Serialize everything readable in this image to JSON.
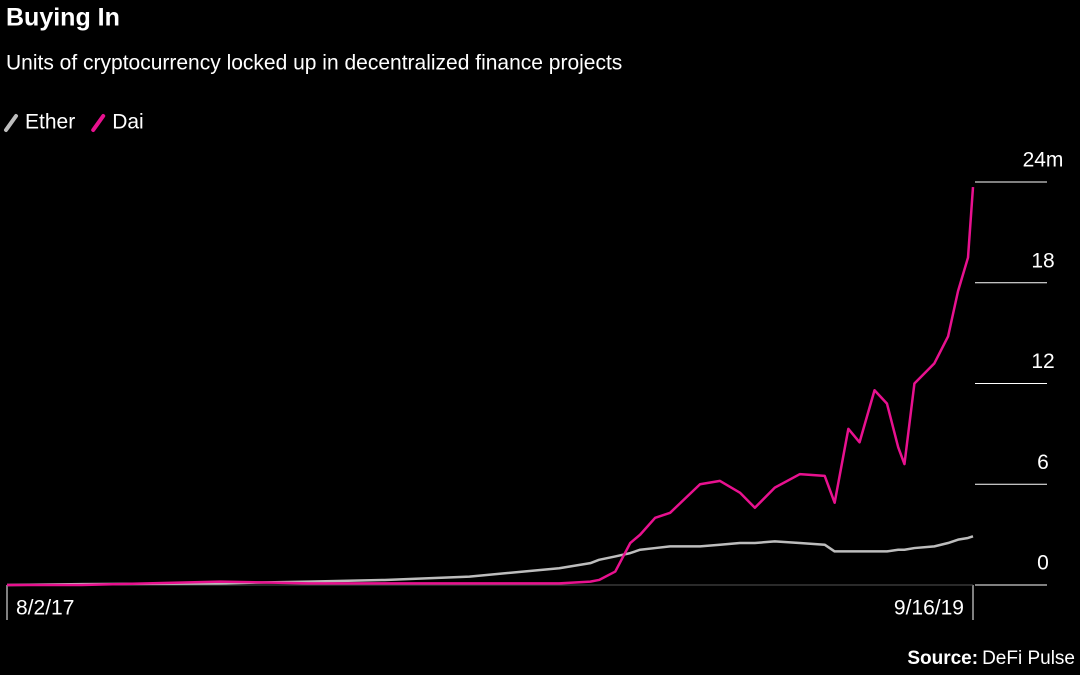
{
  "chart_data": {
    "type": "line",
    "title": "Buying In",
    "subtitle": "Units of cryptocurrency locked up in decentralized finance projects",
    "source_label": "Source:",
    "source": "DeFi Pulse",
    "x": [
      "8/2/17",
      "10/1/17",
      "1/20/18",
      "4/1/18",
      "6/1/18",
      "8/8/18",
      "10/19/18",
      "11/13/18",
      "11/20/18",
      "12/3/18",
      "12/15/18",
      "12/23/18",
      "1/4/19",
      "1/16/19",
      "2/9/19",
      "2/25/19",
      "3/13/19",
      "3/25/19",
      "4/10/19",
      "4/30/19",
      "5/20/19",
      "5/28/19",
      "6/8/19",
      "6/17/19",
      "6/29/19",
      "7/9/19",
      "7/18/19",
      "7/23/19",
      "7/31/19",
      "8/16/19",
      "8/27/19",
      "9/4/19",
      "9/12/19",
      "9/16/19"
    ],
    "xticks": [
      "8/2/17",
      "9/16/19"
    ],
    "series": [
      {
        "name": "Ether",
        "color": "#bdbdbd",
        "values": [
          0,
          0.05,
          0.1,
          0.2,
          0.3,
          0.5,
          1,
          1.3,
          1.5,
          1.7,
          1.9,
          2.1,
          2.2,
          2.3,
          2.3,
          2.4,
          2.5,
          2.5,
          2.6,
          2.5,
          2.4,
          2.0,
          2.0,
          2.0,
          2.0,
          2.0,
          2.1,
          2.1,
          2.2,
          2.3,
          2.5,
          2.7,
          2.8,
          2.9
        ]
      },
      {
        "name": "Dai",
        "color": "#e8118f",
        "values": [
          0,
          0,
          0.2,
          0.1,
          0.1,
          0.1,
          0.1,
          0.2,
          0.3,
          0.8,
          2.5,
          3,
          4,
          4.3,
          6,
          6.2,
          5.5,
          4.6,
          5.8,
          6.6,
          6.5,
          4.9,
          9.3,
          8.5,
          11.6,
          10.8,
          8.2,
          7.2,
          12,
          13.2,
          14.8,
          17.5,
          19.5,
          23.7
        ]
      }
    ],
    "ylim": [
      0,
      24
    ],
    "yticks": [
      0,
      6,
      12,
      18,
      {
        "value": 24,
        "label": "24m"
      }
    ],
    "grid": true
  }
}
